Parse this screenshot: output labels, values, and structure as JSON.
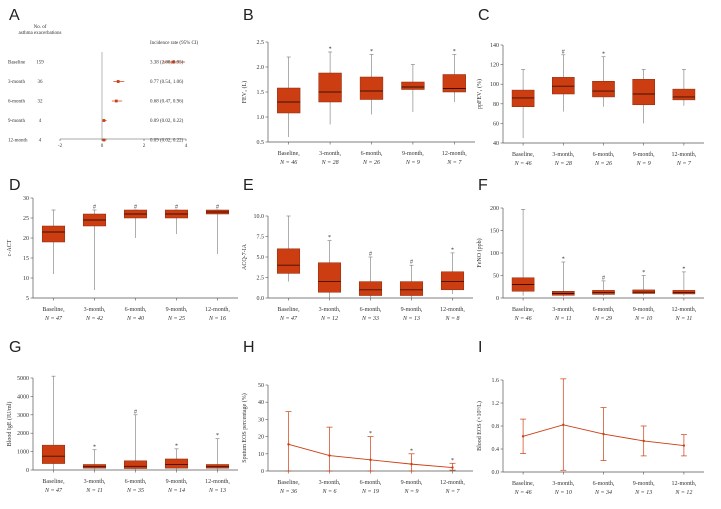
{
  "colors": {
    "box": "#cc3d12",
    "box_edge": "#8a2a0c",
    "line": "#cc3d12",
    "axis": "#555555"
  },
  "panels": {
    "A": {
      "letter": "A",
      "chart_data": {
        "type": "forest",
        "col_header_left": [
          "No. of",
          "asthma exacerbations"
        ],
        "col_header_right": "Incidence rate (95% CI)",
        "rows": [
          {
            "label": "Baseline",
            "n": "159",
            "estimate": 3.38,
            "low": 2.88,
            "high": 3.95,
            "ci_text": "3.38 (2.88, 3.95)"
          },
          {
            "label": "3-month",
            "n": "36",
            "estimate": 0.77,
            "low": 0.54,
            "high": 1.06,
            "ci_text": "0.77 (0.54, 1.06)"
          },
          {
            "label": "6-month",
            "n": "32",
            "estimate": 0.68,
            "low": 0.47,
            "high": 0.96,
            "ci_text": "0.68 (0.47, 0.96)"
          },
          {
            "label": "9-month",
            "n": "4",
            "estimate": 0.09,
            "low": 0.02,
            "high": 0.22,
            "ci_text": "0.09 (0.02, 0.22)"
          },
          {
            "label": "12-month",
            "n": "4",
            "estimate": 0.09,
            "low": 0.02,
            "high": 0.22,
            "ci_text": "0.09 (0.02, 0.22)"
          }
        ],
        "xlim": [
          -2,
          4
        ],
        "xticks": [
          "-2",
          "0",
          "2",
          "4"
        ]
      }
    },
    "B": {
      "letter": "B",
      "chart_data": {
        "type": "box",
        "ylabel": "FEV₁ (L)",
        "ylim": [
          0.5,
          2.5
        ],
        "yticks": [
          "0.5",
          "1.0",
          "1.5",
          "2.0",
          "2.5"
        ],
        "categories": [
          "Baseline,",
          "3-month,",
          "6-month,",
          "9-month,",
          "12-month,"
        ],
        "ns": [
          "N = 46",
          "N = 28",
          "N = 26",
          "N = 9",
          "N = 7"
        ],
        "boxes": [
          {
            "min": 0.6,
            "q1": 1.08,
            "median": 1.3,
            "q3": 1.58,
            "max": 2.2,
            "mark": ""
          },
          {
            "min": 0.85,
            "q1": 1.3,
            "median": 1.5,
            "q3": 1.88,
            "max": 2.3,
            "mark": "*"
          },
          {
            "min": 1.05,
            "q1": 1.35,
            "median": 1.52,
            "q3": 1.8,
            "max": 2.25,
            "mark": "*"
          },
          {
            "min": 1.1,
            "q1": 1.55,
            "median": 1.6,
            "q3": 1.7,
            "max": 2.05,
            "mark": ""
          },
          {
            "min": 1.3,
            "q1": 1.5,
            "median": 1.57,
            "q3": 1.85,
            "max": 2.25,
            "mark": "*"
          }
        ]
      }
    },
    "C": {
      "letter": "C",
      "chart_data": {
        "type": "box",
        "ylabel": "ppFEV₁ (%)",
        "ylim": [
          40,
          140
        ],
        "yticks": [
          "40",
          "60",
          "80",
          "100",
          "120",
          "140"
        ],
        "categories": [
          "Baseline,",
          "3-month,",
          "6-month,",
          "9-month,",
          "12-month,"
        ],
        "ns": [
          "N = 46",
          "N = 28",
          "N = 26",
          "N = 9",
          "N = 7"
        ],
        "boxes": [
          {
            "min": 45,
            "q1": 77,
            "median": 86,
            "q3": 94,
            "max": 115,
            "mark": ""
          },
          {
            "min": 72,
            "q1": 90,
            "median": 98,
            "q3": 107,
            "max": 130,
            "mark": "#"
          },
          {
            "min": 77,
            "q1": 87,
            "median": 93,
            "q3": 103,
            "max": 128,
            "mark": "*"
          },
          {
            "min": 60,
            "q1": 79,
            "median": 90,
            "q3": 105,
            "max": 115,
            "mark": ""
          },
          {
            "min": 78,
            "q1": 84,
            "median": 87,
            "q3": 95,
            "max": 115,
            "mark": ""
          }
        ]
      }
    },
    "D": {
      "letter": "D",
      "chart_data": {
        "type": "box",
        "ylabel": "c-ACT",
        "ylim": [
          5,
          30
        ],
        "yticks": [
          "5",
          "10",
          "15",
          "20",
          "25",
          "30"
        ],
        "categories": [
          "Baseline,",
          "3-month,",
          "6-month,",
          "9-month,",
          "12-month,"
        ],
        "ns": [
          "N = 47",
          "N = 42",
          "N = 40",
          "N = 25",
          "N = 16"
        ],
        "boxes": [
          {
            "min": 11,
            "q1": 19,
            "median": 21.5,
            "q3": 23,
            "max": 27,
            "mark": ""
          },
          {
            "min": 7,
            "q1": 23,
            "median": 24.5,
            "q3": 26,
            "max": 27,
            "mark": "#"
          },
          {
            "min": 20,
            "q1": 25,
            "median": 26,
            "q3": 27,
            "max": 27,
            "mark": "#"
          },
          {
            "min": 21,
            "q1": 25,
            "median": 26,
            "q3": 27,
            "max": 27,
            "mark": "#"
          },
          {
            "min": 16,
            "q1": 26,
            "median": 26.5,
            "q3": 27,
            "max": 27,
            "mark": "#"
          }
        ]
      }
    },
    "E": {
      "letter": "E",
      "chart_data": {
        "type": "box",
        "ylabel": "ACQ-7-IA",
        "ylim": [
          0,
          10
        ],
        "yticks": [
          "0.0",
          "2.5",
          "5.0",
          "7.5",
          "10.0"
        ],
        "categories": [
          "Baseline,",
          "3-month,",
          "6-month,",
          "9-month,",
          "12-month,"
        ],
        "ns": [
          "N = 47",
          "N = 12",
          "N = 33",
          "N = 13",
          "N = 8"
        ],
        "boxes": [
          {
            "min": 2,
            "q1": 3,
            "median": 4,
            "q3": 6,
            "max": 10,
            "mark": ""
          },
          {
            "min": 0,
            "q1": 0.7,
            "median": 2,
            "q3": 4.3,
            "max": 7,
            "mark": "*"
          },
          {
            "min": 0,
            "q1": 0.3,
            "median": 1,
            "q3": 2,
            "max": 5,
            "mark": "#"
          },
          {
            "min": 0,
            "q1": 0.3,
            "median": 1,
            "q3": 2,
            "max": 4,
            "mark": "#"
          },
          {
            "min": 0.5,
            "q1": 1,
            "median": 2,
            "q3": 3.2,
            "max": 5.5,
            "mark": "*"
          }
        ]
      }
    },
    "F": {
      "letter": "F",
      "chart_data": {
        "type": "box",
        "ylabel": "FeNO (ppb)",
        "ylim": [
          0,
          200
        ],
        "yticks": [
          "0",
          "50",
          "100",
          "150",
          "200"
        ],
        "categories": [
          "Baseline,",
          "3-month,",
          "6-month,",
          "9-month,",
          "12-month,"
        ],
        "ns": [
          "N = 46",
          "N = 11",
          "N = 29",
          "N = 10",
          "N = 11"
        ],
        "boxes": [
          {
            "min": 5,
            "q1": 15,
            "median": 30,
            "q3": 45,
            "max": 197,
            "mark": ""
          },
          {
            "min": 3,
            "q1": 6,
            "median": 10,
            "q3": 15,
            "max": 80,
            "mark": "*"
          },
          {
            "min": 5,
            "q1": 8,
            "median": 12,
            "q3": 17,
            "max": 38,
            "mark": "#"
          },
          {
            "min": 6,
            "q1": 10,
            "median": 13,
            "q3": 18,
            "max": 50,
            "mark": "*"
          },
          {
            "min": 5,
            "q1": 9,
            "median": 12,
            "q3": 17,
            "max": 58,
            "mark": "*"
          }
        ]
      }
    },
    "G": {
      "letter": "G",
      "chart_data": {
        "type": "box",
        "ylabel": "Blood IgE (IU/ml)",
        "ylim": [
          0,
          5000
        ],
        "yticks": [
          "0",
          "1000",
          "2000",
          "3000",
          "4000",
          "5000"
        ],
        "categories": [
          "Baseline,",
          "3-month,",
          "6-month,",
          "9-month,",
          "12-month,"
        ],
        "ns": [
          "N = 47",
          "N = 11",
          "N = 35",
          "N = 14",
          "N = 13"
        ],
        "boxes": [
          {
            "min": 0,
            "q1": 350,
            "median": 750,
            "q3": 1350,
            "max": 5100,
            "mark": ""
          },
          {
            "min": 0,
            "q1": 100,
            "median": 180,
            "q3": 300,
            "max": 1100,
            "mark": "*"
          },
          {
            "min": 0,
            "q1": 80,
            "median": 200,
            "q3": 500,
            "max": 3000,
            "mark": "#"
          },
          {
            "min": 0,
            "q1": 100,
            "median": 300,
            "q3": 600,
            "max": 1150,
            "mark": "*"
          },
          {
            "min": 0,
            "q1": 100,
            "median": 180,
            "q3": 300,
            "max": 1700,
            "mark": "*"
          }
        ]
      }
    },
    "H": {
      "letter": "H",
      "chart_data": {
        "type": "line_errorbar",
        "ylabel": "Sputum EOS percentage (%)",
        "ylim": [
          0,
          50
        ],
        "yticks": [
          "0",
          "10",
          "20",
          "30",
          "40",
          "50"
        ],
        "categories": [
          "Baseline,",
          "3-month,",
          "6-month,",
          "9-month,",
          "12-month,"
        ],
        "ns": [
          "N = 36",
          "N = 6",
          "N = 19",
          "N = 9",
          "N = 7"
        ],
        "points": [
          {
            "mean": 15.5,
            "low": 0,
            "high": 34.5,
            "mark": ""
          },
          {
            "mean": 9,
            "low": 0,
            "high": 25.5,
            "mark": ""
          },
          {
            "mean": 6.5,
            "low": 0,
            "high": 20,
            "mark": "*"
          },
          {
            "mean": 4,
            "low": 0,
            "high": 10,
            "mark": "*"
          },
          {
            "mean": 2,
            "low": 0.5,
            "high": 4.5,
            "mark": "*"
          }
        ]
      }
    },
    "I": {
      "letter": "I",
      "chart_data": {
        "type": "line_errorbar",
        "ylabel": "Blood EOS (×10⁹/L)",
        "ylim": [
          0,
          1.6
        ],
        "yticks": [
          "0.0",
          "0.4",
          "0.8",
          "1.2",
          "1.6"
        ],
        "categories": [
          "Baseline,",
          "3-month,",
          "6-month,",
          "9-month,",
          "12-month,"
        ],
        "ns": [
          "N = 46",
          "N = 10",
          "N = 34",
          "N = 13",
          "N = 12"
        ],
        "points": [
          {
            "mean": 0.62,
            "low": 0.32,
            "high": 0.92,
            "mark": ""
          },
          {
            "mean": 0.82,
            "low": 0.03,
            "high": 1.62,
            "mark": ""
          },
          {
            "mean": 0.66,
            "low": 0.2,
            "high": 1.12,
            "mark": ""
          },
          {
            "mean": 0.54,
            "low": 0.28,
            "high": 0.8,
            "mark": ""
          },
          {
            "mean": 0.46,
            "low": 0.28,
            "high": 0.65,
            "mark": ""
          }
        ]
      }
    }
  }
}
